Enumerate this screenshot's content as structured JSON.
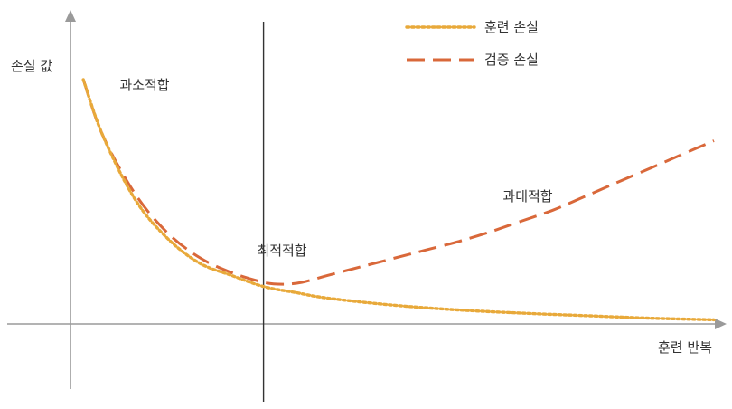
{
  "chart_data": {
    "type": "line",
    "title": "",
    "xlabel": "훈련 반복",
    "ylabel": "손실 값",
    "xlim": [
      0,
      100
    ],
    "ylim": [
      -20,
      100
    ],
    "grid": false,
    "legend_position": "top-right",
    "colors": {
      "train": "#E8A93A",
      "val": "#D9683A",
      "axis": "#9a9a9a",
      "divider": "#333333"
    },
    "series": [
      {
        "name": "훈련 손실",
        "style": "dotted",
        "x": [
          2,
          5,
          10,
          15,
          20,
          25,
          30,
          35,
          40,
          50,
          60,
          70,
          80,
          90,
          100
        ],
        "y": [
          88,
          68,
          45,
          31,
          22,
          17.5,
          13.5,
          11.3,
          9.3,
          6.8,
          5.1,
          3.9,
          3,
          2.1,
          1.5
        ]
      },
      {
        "name": "검증 손실",
        "style": "dashed",
        "x": [
          2,
          5,
          10,
          15,
          20,
          25,
          30,
          33,
          36,
          40,
          45,
          50,
          55,
          60,
          65,
          70,
          75,
          80,
          85,
          90,
          95,
          100
        ],
        "y": [
          88,
          68,
          47,
          33,
          24,
          18.5,
          15,
          14.3,
          15,
          17.5,
          20.5,
          23.5,
          26.5,
          29.5,
          33,
          37,
          41,
          46,
          51,
          56,
          61,
          66
        ]
      }
    ],
    "annotations": [
      {
        "text": "과소적합",
        "x": 15,
        "y": 82
      },
      {
        "text": "최적적합",
        "x": 30,
        "y": 26
      },
      {
        "text": "과대적합",
        "x": 72,
        "y": 44
      }
    ],
    "optimal_x": 30
  }
}
